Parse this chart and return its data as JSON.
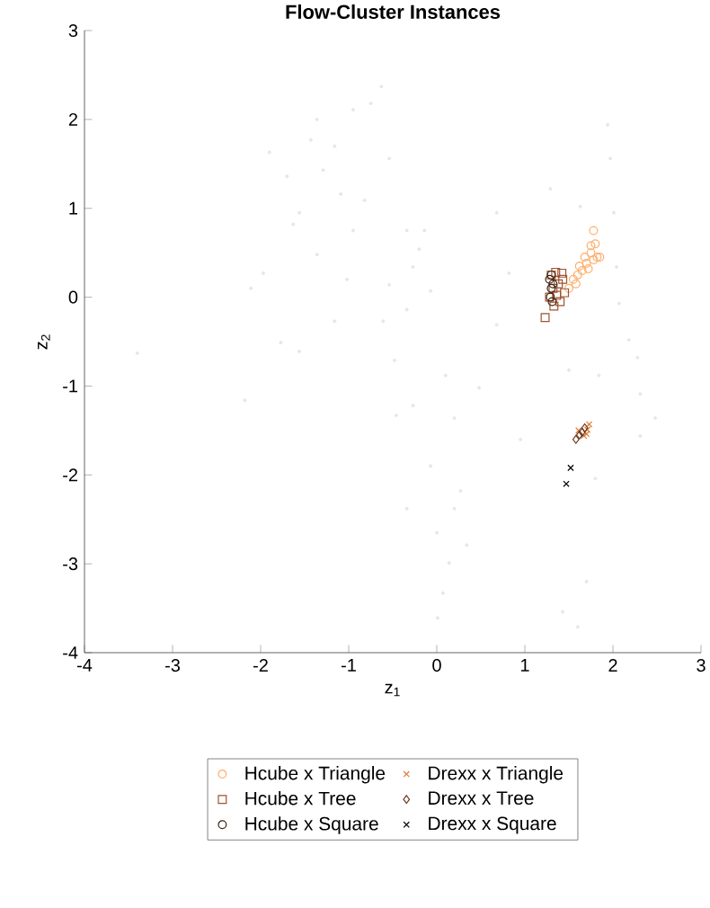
{
  "chart_data": {
    "type": "scatter",
    "title": "Flow-Cluster Instances",
    "xlabel": "z$_{1}$",
    "ylabel": "z$_{2}$",
    "xlim": [
      -4,
      3
    ],
    "ylim": [
      -4,
      3
    ],
    "xticks": [
      -4,
      -3,
      -2,
      -1,
      0,
      1,
      2,
      3
    ],
    "yticks": [
      -4,
      -3,
      -2,
      -1,
      0,
      1,
      2,
      3
    ],
    "grid": false,
    "legend": "bottom",
    "series": [
      {
        "color": "#e6e6e6",
        "marker": "circle",
        "x": [
          -0.63,
          -1.36,
          -1.43,
          -1.9,
          -0.95,
          -0.75,
          -1.7,
          -1.29,
          -1.56,
          -1.09,
          -0.82,
          -0.54,
          -1.36,
          -1.16,
          -2.11,
          -1.77,
          -3.4,
          -2.18,
          -1.56,
          -1.97,
          -1.02,
          -0.34,
          -0.27,
          -0.2,
          -0.54,
          -0.34,
          -0.07,
          -0.61,
          -0.48,
          -0.27,
          -0.46,
          0.1,
          0.48,
          0.2,
          -0.07,
          0.27,
          -0.34,
          0.0,
          0.14,
          0.07,
          0.01,
          0.2,
          0.34,
          0.68,
          0.68,
          0.95,
          1.29,
          1.63,
          1.94,
          1.97,
          2.01,
          2.04,
          2.07,
          2.18,
          2.28,
          2.31,
          2.48,
          2.31,
          1.8,
          1.7,
          1.43,
          1.6,
          0.82,
          -0.14,
          -1.16,
          -1.63,
          -0.95,
          1.5,
          1.84
        ],
        "values": [
          2.37,
          2.0,
          1.77,
          1.63,
          2.11,
          2.18,
          1.36,
          1.43,
          0.95,
          1.16,
          1.09,
          1.56,
          0.48,
          -0.27,
          0.1,
          -0.51,
          -0.63,
          -1.16,
          -0.61,
          0.27,
          0.2,
          0.75,
          0.34,
          0.54,
          0.14,
          -0.14,
          0.07,
          -0.27,
          -0.71,
          -1.22,
          -1.33,
          -0.88,
          -1.02,
          -1.36,
          -1.9,
          -2.18,
          -2.38,
          -2.65,
          -2.99,
          -3.33,
          -3.61,
          -2.38,
          -2.79,
          0.95,
          -0.31,
          -1.6,
          1.22,
          1.02,
          1.94,
          1.56,
          0.95,
          0.34,
          -0.07,
          -0.48,
          -0.68,
          -1.09,
          -1.36,
          -1.56,
          -2.04,
          -3.2,
          -3.54,
          -3.71,
          0.27,
          0.75,
          1.7,
          0.82,
          0.75,
          -0.82,
          -0.88
        ]
      },
      {
        "name": "Hcube x Triangle",
        "color": "#fdae6b",
        "marker": "circle",
        "x": [
          1.78,
          1.8,
          1.75,
          1.82,
          1.78,
          1.7,
          1.65,
          1.6,
          1.55,
          1.72,
          1.85,
          1.68,
          1.62,
          1.58,
          1.5,
          1.75
        ],
        "values": [
          0.75,
          0.6,
          0.5,
          0.45,
          0.42,
          0.38,
          0.3,
          0.25,
          0.2,
          0.32,
          0.45,
          0.45,
          0.35,
          0.15,
          0.1,
          0.58
        ]
      },
      {
        "name": "Hcube x Tree",
        "color": "#a0522d",
        "marker": "square",
        "x": [
          1.3,
          1.35,
          1.42,
          1.38,
          1.32,
          1.45,
          1.4,
          1.33,
          1.28,
          1.43,
          1.23,
          1.36
        ],
        "values": [
          0.25,
          0.28,
          0.27,
          0.15,
          0.1,
          0.05,
          -0.05,
          -0.1,
          0.0,
          0.2,
          -0.23,
          0.02
        ]
      },
      {
        "name": "Hcube x Square",
        "color": "#3d2314",
        "marker": "circle",
        "x": [
          1.28,
          1.3,
          1.29,
          1.31,
          1.3,
          1.32
        ],
        "values": [
          0.2,
          0.1,
          0.0,
          -0.05,
          0.25,
          0.15
        ]
      },
      {
        "name": "Drexx x Triangle",
        "color": "#e07b39",
        "marker": "cross",
        "x": [
          1.67,
          1.71,
          1.73,
          1.61,
          1.7
        ],
        "values": [
          -1.56,
          -1.49,
          -1.43,
          -1.5,
          -1.54
        ]
      },
      {
        "name": "Drexx x Tree",
        "color": "#6b3a1f",
        "marker": "diamond",
        "x": [
          1.58,
          1.62,
          1.65,
          1.68
        ],
        "values": [
          -1.6,
          -1.55,
          -1.52,
          -1.47
        ]
      },
      {
        "name": "Drexx x Square",
        "color": "#000000",
        "marker": "cross",
        "x": [
          1.52,
          1.47
        ],
        "values": [
          -1.92,
          -2.1
        ]
      }
    ]
  }
}
